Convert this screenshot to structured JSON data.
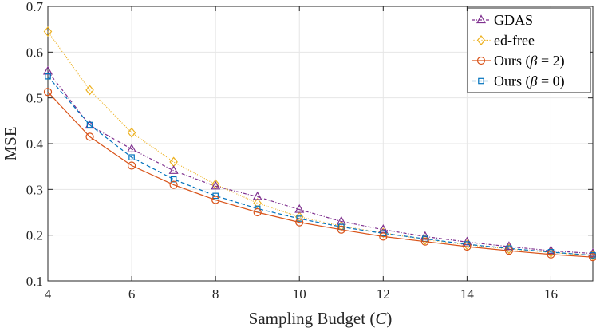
{
  "chart_data": {
    "type": "line",
    "title": "",
    "xlabel": "Sampling Budget (C)",
    "xlabel_parts": {
      "pre": "Sampling Budget (",
      "var": "C",
      "post": ")"
    },
    "ylabel": "MSE",
    "xlim": [
      4,
      17
    ],
    "ylim": [
      0.1,
      0.7
    ],
    "grid": true,
    "legend_position": "top-right",
    "x_ticks": [
      "4",
      "6",
      "8",
      "10",
      "12",
      "14",
      "16"
    ],
    "y_ticks": [
      "0.1",
      "0.2",
      "0.3",
      "0.4",
      "0.5",
      "0.6",
      "0.7"
    ],
    "x": [
      4,
      5,
      6,
      7,
      8,
      9,
      10,
      11,
      12,
      13,
      14,
      15,
      16,
      17
    ],
    "series": [
      {
        "name": "GDAS",
        "color": "#7E2F8E",
        "marker": "triangle",
        "dash": "4,2,1,2",
        "values": [
          0.558,
          0.44,
          0.388,
          0.341,
          0.307,
          0.284,
          0.256,
          0.23,
          0.212,
          0.197,
          0.185,
          0.175,
          0.166,
          0.16
        ]
      },
      {
        "name": "ed-free",
        "color": "#EDB120",
        "marker": "diamond",
        "dash": "1,1.5",
        "values": [
          0.645,
          0.517,
          0.424,
          0.36,
          0.311,
          0.27,
          0.24,
          0.22,
          0.205,
          0.19,
          0.179,
          0.17,
          0.162,
          0.156
        ]
      },
      {
        "name": "Ours (β = 2)",
        "color": "#D95319",
        "marker": "circle",
        "dash": "",
        "values": [
          0.513,
          0.415,
          0.352,
          0.31,
          0.277,
          0.25,
          0.228,
          0.212,
          0.197,
          0.186,
          0.175,
          0.166,
          0.158,
          0.152
        ]
      },
      {
        "name": "Ours (β = 0)",
        "color": "#0072BD",
        "marker": "square",
        "dash": "5,3",
        "values": [
          0.547,
          0.441,
          0.37,
          0.322,
          0.286,
          0.258,
          0.236,
          0.218,
          0.204,
          0.192,
          0.18,
          0.171,
          0.163,
          0.156
        ]
      }
    ],
    "legend_labels": [
      {
        "pre": "GDAS",
        "var": "",
        "post": ""
      },
      {
        "pre": "ed-free",
        "var": "",
        "post": ""
      },
      {
        "pre": "Ours (",
        "var": "β",
        "post": " = 2)"
      },
      {
        "pre": "Ours (",
        "var": "β",
        "post": " = 0)"
      }
    ]
  }
}
